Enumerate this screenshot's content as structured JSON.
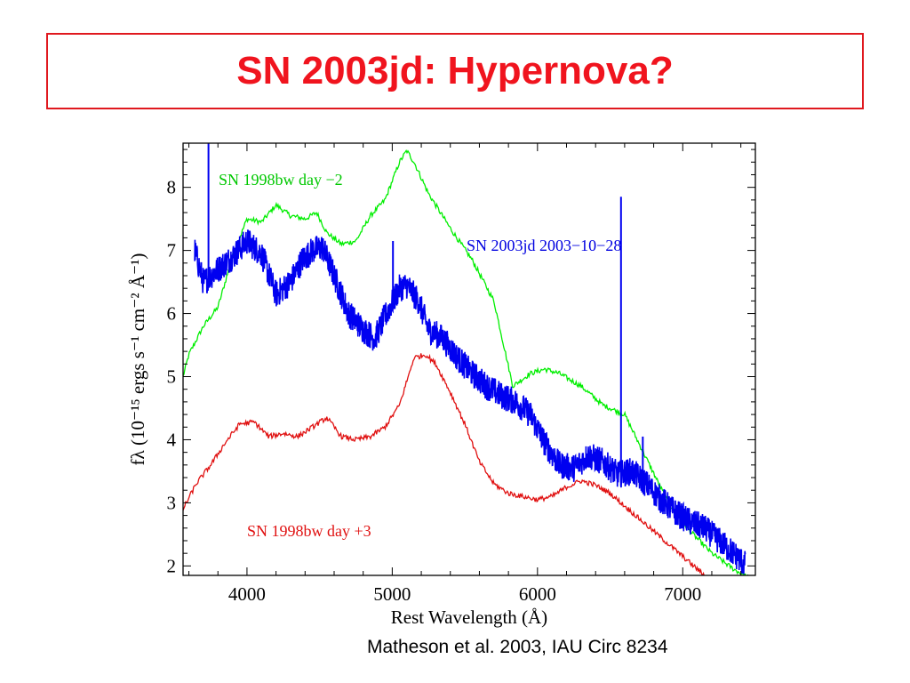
{
  "slide": {
    "title": "SN 2003jd: Hypernova?",
    "citation": "Matheson et al. 2003, IAU Circ 8234",
    "title_color": "#f0141e"
  },
  "chart_data": {
    "type": "line",
    "xlabel": "Rest Wavelength (Å)",
    "ylabel": "fλ (10⁻¹⁵ ergs s⁻¹ cm⁻² Å⁻¹)",
    "xlim": [
      3560,
      7500
    ],
    "ylim": [
      1.85,
      8.7
    ],
    "xticks": [
      4000,
      5000,
      6000,
      7000
    ],
    "yticks": [
      2,
      3,
      4,
      5,
      6,
      7,
      8
    ],
    "grid": false,
    "series": [
      {
        "name": "SN 1998bw day −2",
        "color": "#00ee00",
        "noise": 0.04,
        "points": [
          [
            3560,
            5.0
          ],
          [
            3600,
            5.35
          ],
          [
            3700,
            5.8
          ],
          [
            3800,
            6.1
          ],
          [
            3900,
            6.9
          ],
          [
            4000,
            7.5
          ],
          [
            4100,
            7.45
          ],
          [
            4200,
            7.72
          ],
          [
            4300,
            7.55
          ],
          [
            4400,
            7.5
          ],
          [
            4480,
            7.6
          ],
          [
            4550,
            7.28
          ],
          [
            4650,
            7.1
          ],
          [
            4750,
            7.15
          ],
          [
            4850,
            7.55
          ],
          [
            4950,
            7.8
          ],
          [
            5050,
            8.4
          ],
          [
            5100,
            8.58
          ],
          [
            5150,
            8.4
          ],
          [
            5250,
            7.9
          ],
          [
            5400,
            7.35
          ],
          [
            5550,
            6.85
          ],
          [
            5700,
            6.2
          ],
          [
            5830,
            4.85
          ],
          [
            5950,
            5.05
          ],
          [
            6050,
            5.12
          ],
          [
            6150,
            5.05
          ],
          [
            6300,
            4.85
          ],
          [
            6450,
            4.55
          ],
          [
            6600,
            4.4
          ],
          [
            6750,
            3.7
          ],
          [
            6900,
            3.0
          ],
          [
            7050,
            2.55
          ],
          [
            7200,
            2.2
          ],
          [
            7350,
            1.95
          ],
          [
            7500,
            1.75
          ]
        ]
      },
      {
        "name": "SN 2003jd 2003−10−28",
        "color": "#0000f0",
        "noise": 0.22,
        "points": [
          [
            3640,
            7.0
          ],
          [
            3700,
            6.5
          ],
          [
            3800,
            6.7
          ],
          [
            3900,
            6.9
          ],
          [
            4000,
            7.15
          ],
          [
            4100,
            6.95
          ],
          [
            4200,
            6.3
          ],
          [
            4300,
            6.5
          ],
          [
            4380,
            6.85
          ],
          [
            4450,
            7.0
          ],
          [
            4520,
            7.05
          ],
          [
            4600,
            6.6
          ],
          [
            4700,
            6.0
          ],
          [
            4800,
            5.75
          ],
          [
            4880,
            5.6
          ],
          [
            4950,
            5.95
          ],
          [
            5050,
            6.4
          ],
          [
            5100,
            6.45
          ],
          [
            5180,
            6.2
          ],
          [
            5250,
            5.75
          ],
          [
            5350,
            5.6
          ],
          [
            5450,
            5.3
          ],
          [
            5550,
            5.05
          ],
          [
            5650,
            4.85
          ],
          [
            5750,
            4.7
          ],
          [
            5850,
            4.6
          ],
          [
            5950,
            4.4
          ],
          [
            6050,
            3.95
          ],
          [
            6150,
            3.6
          ],
          [
            6250,
            3.55
          ],
          [
            6350,
            3.75
          ],
          [
            6450,
            3.65
          ],
          [
            6550,
            3.45
          ],
          [
            6650,
            3.5
          ],
          [
            6750,
            3.3
          ],
          [
            6850,
            3.05
          ],
          [
            6950,
            2.85
          ],
          [
            7050,
            2.7
          ],
          [
            7150,
            2.6
          ],
          [
            7250,
            2.4
          ],
          [
            7350,
            2.2
          ],
          [
            7430,
            2.02
          ]
        ]
      },
      {
        "name": "SN 1998bw day +3",
        "color": "#e01010",
        "noise": 0.04,
        "points": [
          [
            3560,
            2.9
          ],
          [
            3650,
            3.3
          ],
          [
            3750,
            3.6
          ],
          [
            3850,
            3.95
          ],
          [
            3950,
            4.25
          ],
          [
            4050,
            4.28
          ],
          [
            4150,
            4.05
          ],
          [
            4250,
            4.1
          ],
          [
            4350,
            4.05
          ],
          [
            4450,
            4.2
          ],
          [
            4550,
            4.35
          ],
          [
            4650,
            4.05
          ],
          [
            4750,
            4.0
          ],
          [
            4850,
            4.05
          ],
          [
            4950,
            4.2
          ],
          [
            5050,
            4.55
          ],
          [
            5150,
            5.3
          ],
          [
            5230,
            5.35
          ],
          [
            5300,
            5.2
          ],
          [
            5400,
            4.75
          ],
          [
            5500,
            4.25
          ],
          [
            5600,
            3.65
          ],
          [
            5700,
            3.3
          ],
          [
            5800,
            3.15
          ],
          [
            5900,
            3.1
          ],
          [
            6000,
            3.05
          ],
          [
            6100,
            3.1
          ],
          [
            6200,
            3.25
          ],
          [
            6300,
            3.35
          ],
          [
            6400,
            3.28
          ],
          [
            6500,
            3.15
          ],
          [
            6600,
            2.95
          ],
          [
            6700,
            2.75
          ],
          [
            6800,
            2.55
          ],
          [
            6900,
            2.35
          ],
          [
            7000,
            2.15
          ],
          [
            7100,
            1.95
          ],
          [
            7200,
            1.75
          ]
        ]
      }
    ],
    "spikes": [
      {
        "series": 1,
        "x": 3735,
        "y": 8.7
      },
      {
        "series": 1,
        "x": 5005,
        "y": 7.15
      },
      {
        "series": 1,
        "x": 6575,
        "y": 7.85
      },
      {
        "series": 1,
        "x": 6725,
        "y": 4.05
      }
    ],
    "annotations": [
      {
        "text": "SN 1998bw day −2",
        "color": "#00c800"
      },
      {
        "text": "SN 2003jd 2003−10−28",
        "color": "#0000e0"
      },
      {
        "text": "SN 1998bw day +3",
        "color": "#e01010"
      }
    ]
  }
}
